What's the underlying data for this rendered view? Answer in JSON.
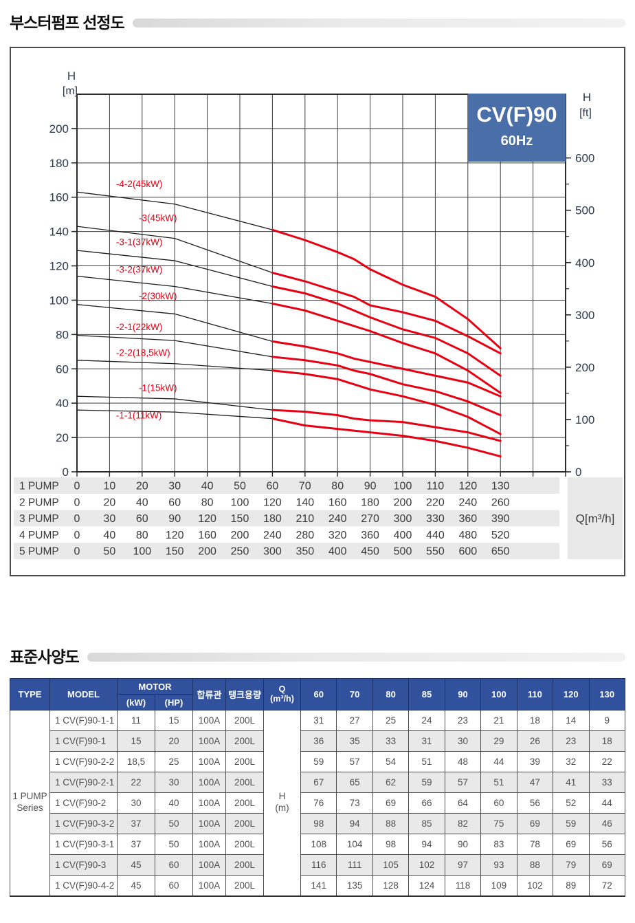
{
  "sections": {
    "chart_title": "부스터펌프 선정도",
    "spec_title": "표준사양도"
  },
  "colors": {
    "header_blue": "#31519c",
    "badge_blue": "#4a6fa8",
    "curve_red": "#e60012",
    "curve_black": "#1c1c1c",
    "grid": "#3d3d3d",
    "row_gray": "#e9e9e9",
    "tick_text": "#2e3a50"
  },
  "chart_data": {
    "type": "line",
    "badge": {
      "line1": "CV(F)90",
      "line2": "60Hz"
    },
    "axes": {
      "left": {
        "title": [
          "H",
          "[m]"
        ],
        "unit": "m",
        "min": 0,
        "max": 220,
        "grid_step": 20,
        "ticks": [
          0,
          20,
          40,
          60,
          80,
          100,
          120,
          140,
          160,
          180,
          200
        ]
      },
      "right": {
        "title": [
          "H",
          "[ft]"
        ],
        "unit": "ft",
        "min": 0,
        "max": 620,
        "ticks": [
          0,
          100,
          200,
          300,
          400,
          500,
          600
        ],
        "minor_step": 50
      },
      "x": {
        "unit_label": "Q[m³/h]",
        "min": 0,
        "max": 150,
        "grid_step": 10
      }
    },
    "red_from_q": 60,
    "series": [
      {
        "name": "-4-2(45kW)",
        "label_at": [
          12,
          166
        ],
        "points": [
          [
            0,
            163
          ],
          [
            30,
            156
          ],
          [
            60,
            141
          ],
          [
            70,
            135
          ],
          [
            80,
            128
          ],
          [
            85,
            124
          ],
          [
            90,
            118
          ],
          [
            100,
            109
          ],
          [
            110,
            102
          ],
          [
            120,
            89
          ],
          [
            130,
            72
          ]
        ]
      },
      {
        "name": "-3(45kW)",
        "label_at": [
          19,
          146
        ],
        "points": [
          [
            0,
            143
          ],
          [
            30,
            136
          ],
          [
            60,
            116
          ],
          [
            70,
            111
          ],
          [
            80,
            105
          ],
          [
            85,
            102
          ],
          [
            90,
            97
          ],
          [
            100,
            93
          ],
          [
            110,
            88
          ],
          [
            120,
            79
          ],
          [
            130,
            69
          ]
        ]
      },
      {
        "name": "-3-1(37kW)",
        "label_at": [
          12,
          132
        ],
        "points": [
          [
            0,
            129
          ],
          [
            30,
            123
          ],
          [
            60,
            108
          ],
          [
            70,
            104
          ],
          [
            80,
            98
          ],
          [
            85,
            94
          ],
          [
            90,
            90
          ],
          [
            100,
            83
          ],
          [
            110,
            78
          ],
          [
            120,
            69
          ],
          [
            130,
            56
          ]
        ]
      },
      {
        "name": "-3-2(37kW)",
        "label_at": [
          12,
          116
        ],
        "points": [
          [
            0,
            114
          ],
          [
            30,
            108
          ],
          [
            60,
            98
          ],
          [
            70,
            94
          ],
          [
            80,
            88
          ],
          [
            85,
            85
          ],
          [
            90,
            82
          ],
          [
            100,
            75
          ],
          [
            110,
            69
          ],
          [
            120,
            59
          ],
          [
            130,
            46
          ]
        ]
      },
      {
        "name": "-2(30kW)",
        "label_at": [
          19,
          100.5
        ],
        "points": [
          [
            0,
            97.5
          ],
          [
            30,
            92
          ],
          [
            60,
            76
          ],
          [
            70,
            73
          ],
          [
            80,
            69
          ],
          [
            85,
            66
          ],
          [
            90,
            64
          ],
          [
            100,
            60
          ],
          [
            110,
            56
          ],
          [
            120,
            52
          ],
          [
            130,
            44
          ]
        ]
      },
      {
        "name": "-2-1(22kW)",
        "label_at": [
          12,
          82.5
        ],
        "points": [
          [
            0,
            79.5
          ],
          [
            30,
            76.5
          ],
          [
            60,
            67
          ],
          [
            70,
            65
          ],
          [
            80,
            62
          ],
          [
            85,
            59
          ],
          [
            90,
            57
          ],
          [
            100,
            51
          ],
          [
            110,
            47
          ],
          [
            120,
            41
          ],
          [
            130,
            33
          ]
        ]
      },
      {
        "name": "-2-2(18,5kW)",
        "label_at": [
          12,
          67.5
        ],
        "points": [
          [
            0,
            65
          ],
          [
            30,
            63
          ],
          [
            60,
            59
          ],
          [
            70,
            57
          ],
          [
            80,
            54
          ],
          [
            85,
            51
          ],
          [
            90,
            48
          ],
          [
            100,
            44
          ],
          [
            110,
            39
          ],
          [
            120,
            32
          ],
          [
            130,
            22
          ]
        ]
      },
      {
        "name": "-1(15kW)",
        "label_at": [
          19,
          47
        ],
        "points": [
          [
            0,
            44
          ],
          [
            30,
            42.5
          ],
          [
            60,
            36
          ],
          [
            70,
            35
          ],
          [
            80,
            33
          ],
          [
            85,
            31
          ],
          [
            90,
            30
          ],
          [
            100,
            29
          ],
          [
            110,
            26
          ],
          [
            120,
            23
          ],
          [
            130,
            18
          ]
        ]
      },
      {
        "name": "-1-1(11kW)",
        "label_at": [
          12,
          31
        ],
        "points": [
          [
            0,
            36
          ],
          [
            30,
            34.8
          ],
          [
            60,
            31
          ],
          [
            70,
            27
          ],
          [
            80,
            25
          ],
          [
            85,
            24
          ],
          [
            90,
            23
          ],
          [
            100,
            21
          ],
          [
            110,
            18
          ],
          [
            120,
            14
          ],
          [
            130,
            9
          ]
        ]
      }
    ],
    "pump_table": {
      "unit_label": "Q[m³/h]",
      "rows": [
        {
          "label": "1 PUMP",
          "values": [
            0,
            10,
            20,
            30,
            40,
            50,
            60,
            70,
            80,
            90,
            100,
            110,
            120,
            130
          ]
        },
        {
          "label": "2 PUMP",
          "values": [
            0,
            20,
            40,
            60,
            80,
            100,
            120,
            140,
            160,
            180,
            200,
            220,
            240,
            260
          ]
        },
        {
          "label": "3 PUMP",
          "values": [
            0,
            30,
            60,
            90,
            120,
            150,
            180,
            210,
            240,
            270,
            300,
            330,
            360,
            390
          ]
        },
        {
          "label": "4 PUMP",
          "values": [
            0,
            40,
            80,
            120,
            160,
            200,
            240,
            280,
            320,
            360,
            400,
            440,
            480,
            520
          ]
        },
        {
          "label": "5 PUMP",
          "values": [
            0,
            50,
            100,
            150,
            200,
            250,
            300,
            350,
            400,
            450,
            500,
            550,
            600,
            650
          ]
        }
      ]
    }
  },
  "spec_table": {
    "headers": {
      "type": "TYPE",
      "model": "MODEL",
      "motor": "MOTOR",
      "kw": "(kW)",
      "hp": "(HP)",
      "pipe": "합류관",
      "tank": "탱크용량",
      "q_line1": "Q",
      "q_line2": "(m³/h)"
    },
    "flow_columns": [
      "60",
      "70",
      "80",
      "85",
      "90",
      "100",
      "110",
      "120",
      "130"
    ],
    "type_label": [
      "1 PUMP",
      "Series"
    ],
    "unit_cell": [
      "H",
      "(m)"
    ],
    "rows": [
      {
        "model": "1 CV(F)90-1-1",
        "kw": "11",
        "hp": "15",
        "pipe": "100A",
        "tank": "200L",
        "values": [
          31,
          27,
          25,
          24,
          23,
          21,
          18,
          14,
          9
        ]
      },
      {
        "model": "1 CV(F)90-1",
        "kw": "15",
        "hp": "20",
        "pipe": "100A",
        "tank": "200L",
        "values": [
          36,
          35,
          33,
          31,
          30,
          29,
          26,
          23,
          18
        ]
      },
      {
        "model": "1 CV(F)90-2-2",
        "kw": "18,5",
        "hp": "25",
        "pipe": "100A",
        "tank": "200L",
        "values": [
          59,
          57,
          54,
          51,
          48,
          44,
          39,
          32,
          22
        ]
      },
      {
        "model": "1 CV(F)90-2-1",
        "kw": "22",
        "hp": "30",
        "pipe": "100A",
        "tank": "200L",
        "values": [
          67,
          65,
          62,
          59,
          57,
          51,
          47,
          41,
          33
        ]
      },
      {
        "model": "1 CV(F)90-2",
        "kw": "30",
        "hp": "40",
        "pipe": "100A",
        "tank": "200L",
        "values": [
          76,
          73,
          69,
          66,
          64,
          60,
          56,
          52,
          44
        ]
      },
      {
        "model": "1 CV(F)90-3-2",
        "kw": "37",
        "hp": "50",
        "pipe": "100A",
        "tank": "200L",
        "values": [
          98,
          94,
          88,
          85,
          82,
          75,
          69,
          59,
          46
        ]
      },
      {
        "model": "1 CV(F)90-3-1",
        "kw": "37",
        "hp": "50",
        "pipe": "100A",
        "tank": "200L",
        "values": [
          108,
          104,
          98,
          94,
          90,
          83,
          78,
          69,
          56
        ]
      },
      {
        "model": "1 CV(F)90-3",
        "kw": "45",
        "hp": "60",
        "pipe": "100A",
        "tank": "200L",
        "values": [
          116,
          111,
          105,
          102,
          97,
          93,
          88,
          79,
          69
        ]
      },
      {
        "model": "1 CV(F)90-4-2",
        "kw": "45",
        "hp": "60",
        "pipe": "100A",
        "tank": "200L",
        "values": [
          141,
          135,
          128,
          124,
          118,
          109,
          102,
          89,
          72
        ]
      }
    ]
  }
}
